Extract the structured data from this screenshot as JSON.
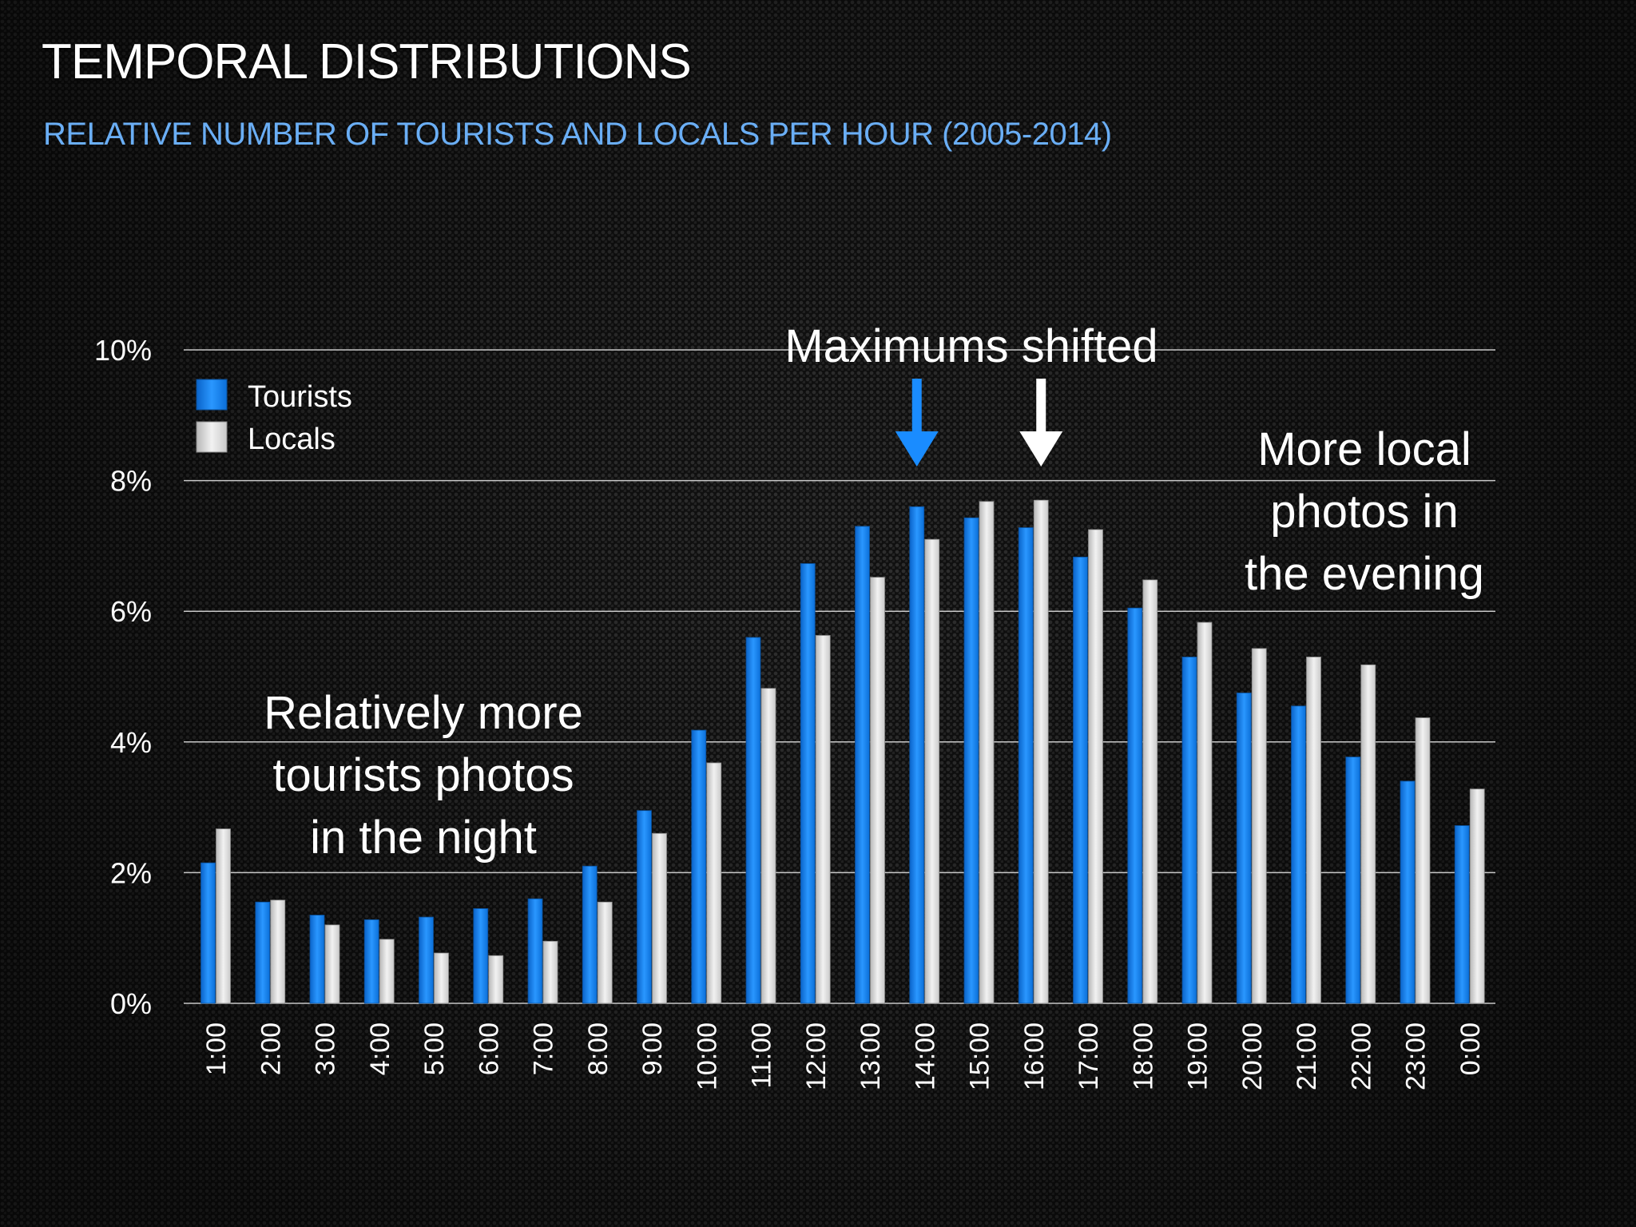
{
  "slide": {
    "title": "TEMPORAL DISTRIBUTIONS",
    "subtitle": "RELATIVE NUMBER OF TOURISTS AND LOCALS PER HOUR (2005-2014)"
  },
  "colors": {
    "tourists": "#1a8cff",
    "locals": "#e6e6e6",
    "accent_arrow_tourists": "#1a8cff",
    "accent_arrow_locals": "#ffffff"
  },
  "chart_data": {
    "type": "bar",
    "categories": [
      "1:00",
      "2:00",
      "3:00",
      "4:00",
      "5:00",
      "6:00",
      "7:00",
      "8:00",
      "9:00",
      "10:00",
      "11:00",
      "12:00",
      "13:00",
      "14:00",
      "15:00",
      "16:00",
      "17:00",
      "18:00",
      "19:00",
      "20:00",
      "21:00",
      "22:00",
      "23:00",
      "0:00"
    ],
    "series": [
      {
        "name": "Tourists",
        "values": [
          2.15,
          1.55,
          1.35,
          1.28,
          1.32,
          1.45,
          1.6,
          2.1,
          2.95,
          4.18,
          5.6,
          6.73,
          7.3,
          7.6,
          7.43,
          7.28,
          6.83,
          6.05,
          5.3,
          4.75,
          4.55,
          3.77,
          3.4,
          2.72
        ]
      },
      {
        "name": "Locals",
        "values": [
          2.67,
          1.58,
          1.2,
          0.98,
          0.77,
          0.73,
          0.95,
          1.55,
          2.6,
          3.68,
          4.82,
          5.63,
          6.52,
          7.1,
          7.68,
          7.7,
          7.25,
          6.48,
          5.83,
          5.43,
          5.3,
          5.18,
          4.37,
          3.28
        ]
      }
    ],
    "yticks": [
      "0%",
      "2%",
      "4%",
      "6%",
      "8%",
      "10%"
    ],
    "ylim": [
      0,
      10
    ],
    "grid": true,
    "legend_position": "top-left",
    "annotations": {
      "maximums": "Maximums shifted",
      "night": [
        "Relatively more",
        "tourists photos",
        "in the night"
      ],
      "evening": [
        "More local",
        "photos in",
        "the evening"
      ]
    },
    "arrows": [
      {
        "category": "14:00",
        "series": "Tourists"
      },
      {
        "category": "16:00",
        "series": "Locals"
      }
    ]
  }
}
